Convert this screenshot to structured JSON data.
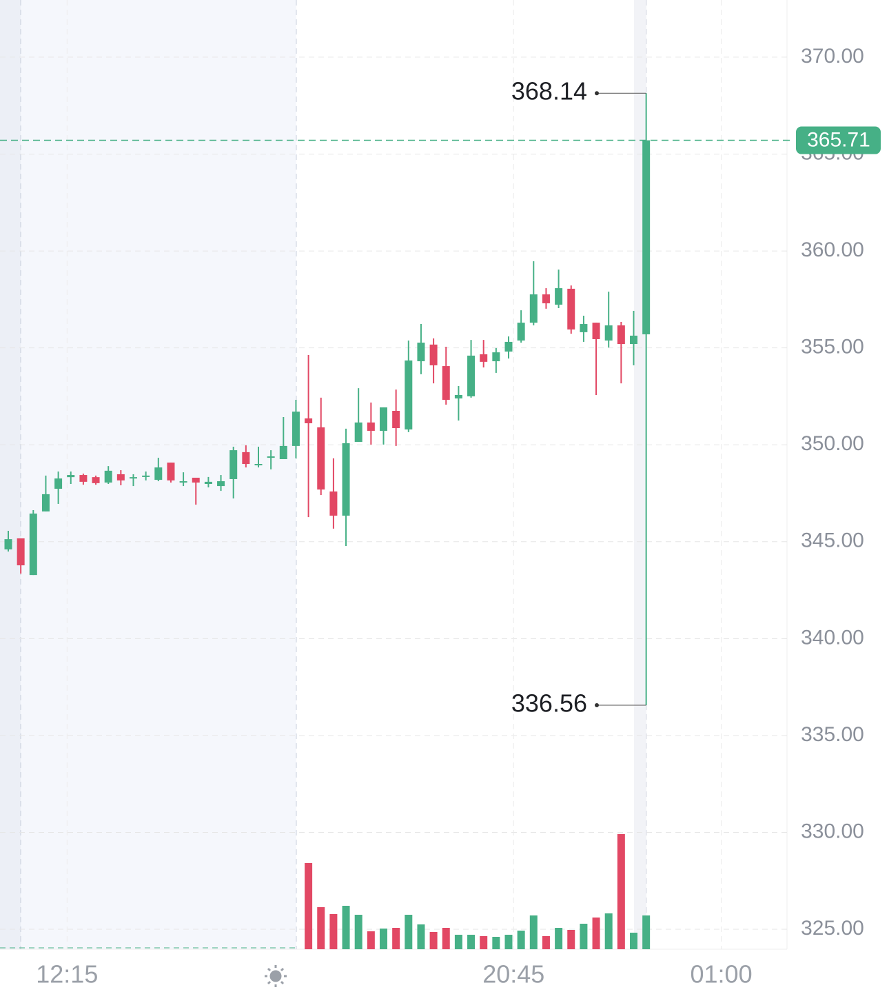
{
  "chart_data": {
    "type": "candlestick",
    "categories": [
      null,
      null,
      null,
      null,
      null,
      null,
      null,
      null,
      null,
      null,
      null,
      null,
      null,
      null,
      null,
      null,
      null,
      null,
      null,
      null,
      null,
      null,
      null,
      null,
      null,
      null,
      null,
      null,
      null,
      null,
      null,
      null,
      null,
      null,
      null,
      null,
      null,
      null,
      null,
      null,
      null,
      null,
      null,
      null,
      null,
      null,
      null,
      null,
      null,
      null,
      null,
      null
    ],
    "open": [
      344.6,
      345.17,
      343.28,
      346.56,
      347.73,
      348.33,
      348.44,
      348.33,
      348.05,
      348.48,
      348.26,
      348.34,
      348.19,
      349.08,
      348.05,
      348.3,
      347.98,
      347.87,
      348.23,
      349.62,
      348.94,
      349.33,
      349.26,
      349.94,
      351.36,
      350.9,
      347.59,
      346.34,
      350.15,
      351.15,
      350.72,
      351.75,
      350.79,
      354.31,
      355.17,
      354.06,
      352.39,
      352.5,
      354.67,
      354.31,
      354.81,
      355.38,
      356.3,
      357.76,
      357.23,
      358.05,
      355.81,
      356.3,
      355.38,
      356.16,
      355.2,
      355.7
    ],
    "close": [
      345.13,
      343.78,
      346.45,
      347.45,
      348.26,
      348.44,
      348.09,
      348.02,
      348.66,
      348.16,
      348.33,
      348.41,
      348.83,
      348.16,
      348.12,
      348.05,
      348.09,
      348.12,
      349.72,
      349.01,
      349.01,
      349.4,
      349.94,
      351.71,
      351.11,
      347.69,
      346.34,
      350.08,
      351.15,
      350.72,
      351.93,
      350.86,
      354.35,
      355.27,
      354.1,
      352.32,
      352.57,
      354.6,
      354.28,
      354.77,
      355.31,
      356.3,
      357.76,
      357.3,
      358.08,
      355.95,
      356.23,
      355.45,
      356.16,
      355.2,
      355.63,
      365.71
    ],
    "high": [
      345.56,
      345.17,
      346.63,
      348.41,
      348.62,
      348.62,
      348.51,
      348.41,
      348.9,
      348.69,
      348.48,
      348.62,
      349.33,
      349.08,
      348.58,
      348.3,
      348.34,
      348.44,
      349.9,
      349.97,
      349.9,
      349.72,
      351.43,
      352.32,
      354.63,
      352.43,
      349.3,
      350.83,
      352.92,
      352.18,
      351.93,
      352.85,
      355.38,
      356.23,
      355.49,
      355.06,
      353.03,
      355.41,
      355.41,
      354.99,
      355.59,
      356.94,
      359.47,
      358.08,
      359.04,
      358.22,
      356.66,
      356.3,
      357.9,
      356.34,
      356.91,
      368.14
    ],
    "low": [
      344.49,
      343.35,
      343.28,
      346.56,
      346.95,
      347.98,
      347.94,
      347.94,
      347.98,
      347.91,
      347.87,
      348.16,
      348.12,
      348.05,
      347.87,
      346.91,
      347.8,
      347.62,
      347.23,
      348.83,
      348.83,
      348.73,
      349.26,
      349.3,
      346.27,
      347.41,
      345.67,
      344.78,
      350.15,
      350.01,
      350.01,
      349.94,
      350.65,
      353.64,
      353.17,
      352.07,
      351.25,
      352.43,
      353.99,
      353.71,
      354.45,
      355.27,
      356.16,
      357.02,
      357.05,
      355.73,
      355.31,
      352.57,
      355.02,
      353.17,
      354.1,
      336.56
    ],
    "volume": [
      null,
      null,
      null,
      null,
      null,
      null,
      null,
      null,
      null,
      null,
      null,
      null,
      null,
      null,
      null,
      null,
      null,
      null,
      null,
      null,
      null,
      null,
      null,
      null,
      125,
      61,
      51,
      63,
      50,
      26,
      30,
      31,
      50,
      36,
      25,
      31,
      21,
      21,
      19,
      18,
      21,
      27,
      49,
      19,
      31,
      28,
      37,
      46,
      52,
      167,
      24,
      49
    ],
    "up_color": "#46b086",
    "down_color": "#e24864",
    "ylim": [
      323.97,
      372.95
    ],
    "yticks": [
      {
        "value": 325,
        "label": "325.00"
      },
      {
        "value": 330,
        "label": "330.00"
      },
      {
        "value": 335,
        "label": "335.00"
      },
      {
        "value": 340,
        "label": "340.00"
      },
      {
        "value": 345,
        "label": "345.00"
      },
      {
        "value": 350,
        "label": "350.00"
      },
      {
        "value": 355,
        "label": "355.00"
      },
      {
        "value": 360,
        "label": "360.00"
      },
      {
        "value": 365,
        "label": "365.00"
      },
      {
        "value": 370,
        "label": "370.00"
      }
    ],
    "xticks": [
      {
        "value": 4.7,
        "label": "12:15"
      },
      {
        "value": 40.4,
        "label": "20:45"
      },
      {
        "value": 57,
        "label": "01:00"
      }
    ],
    "grid": true
  }
}
